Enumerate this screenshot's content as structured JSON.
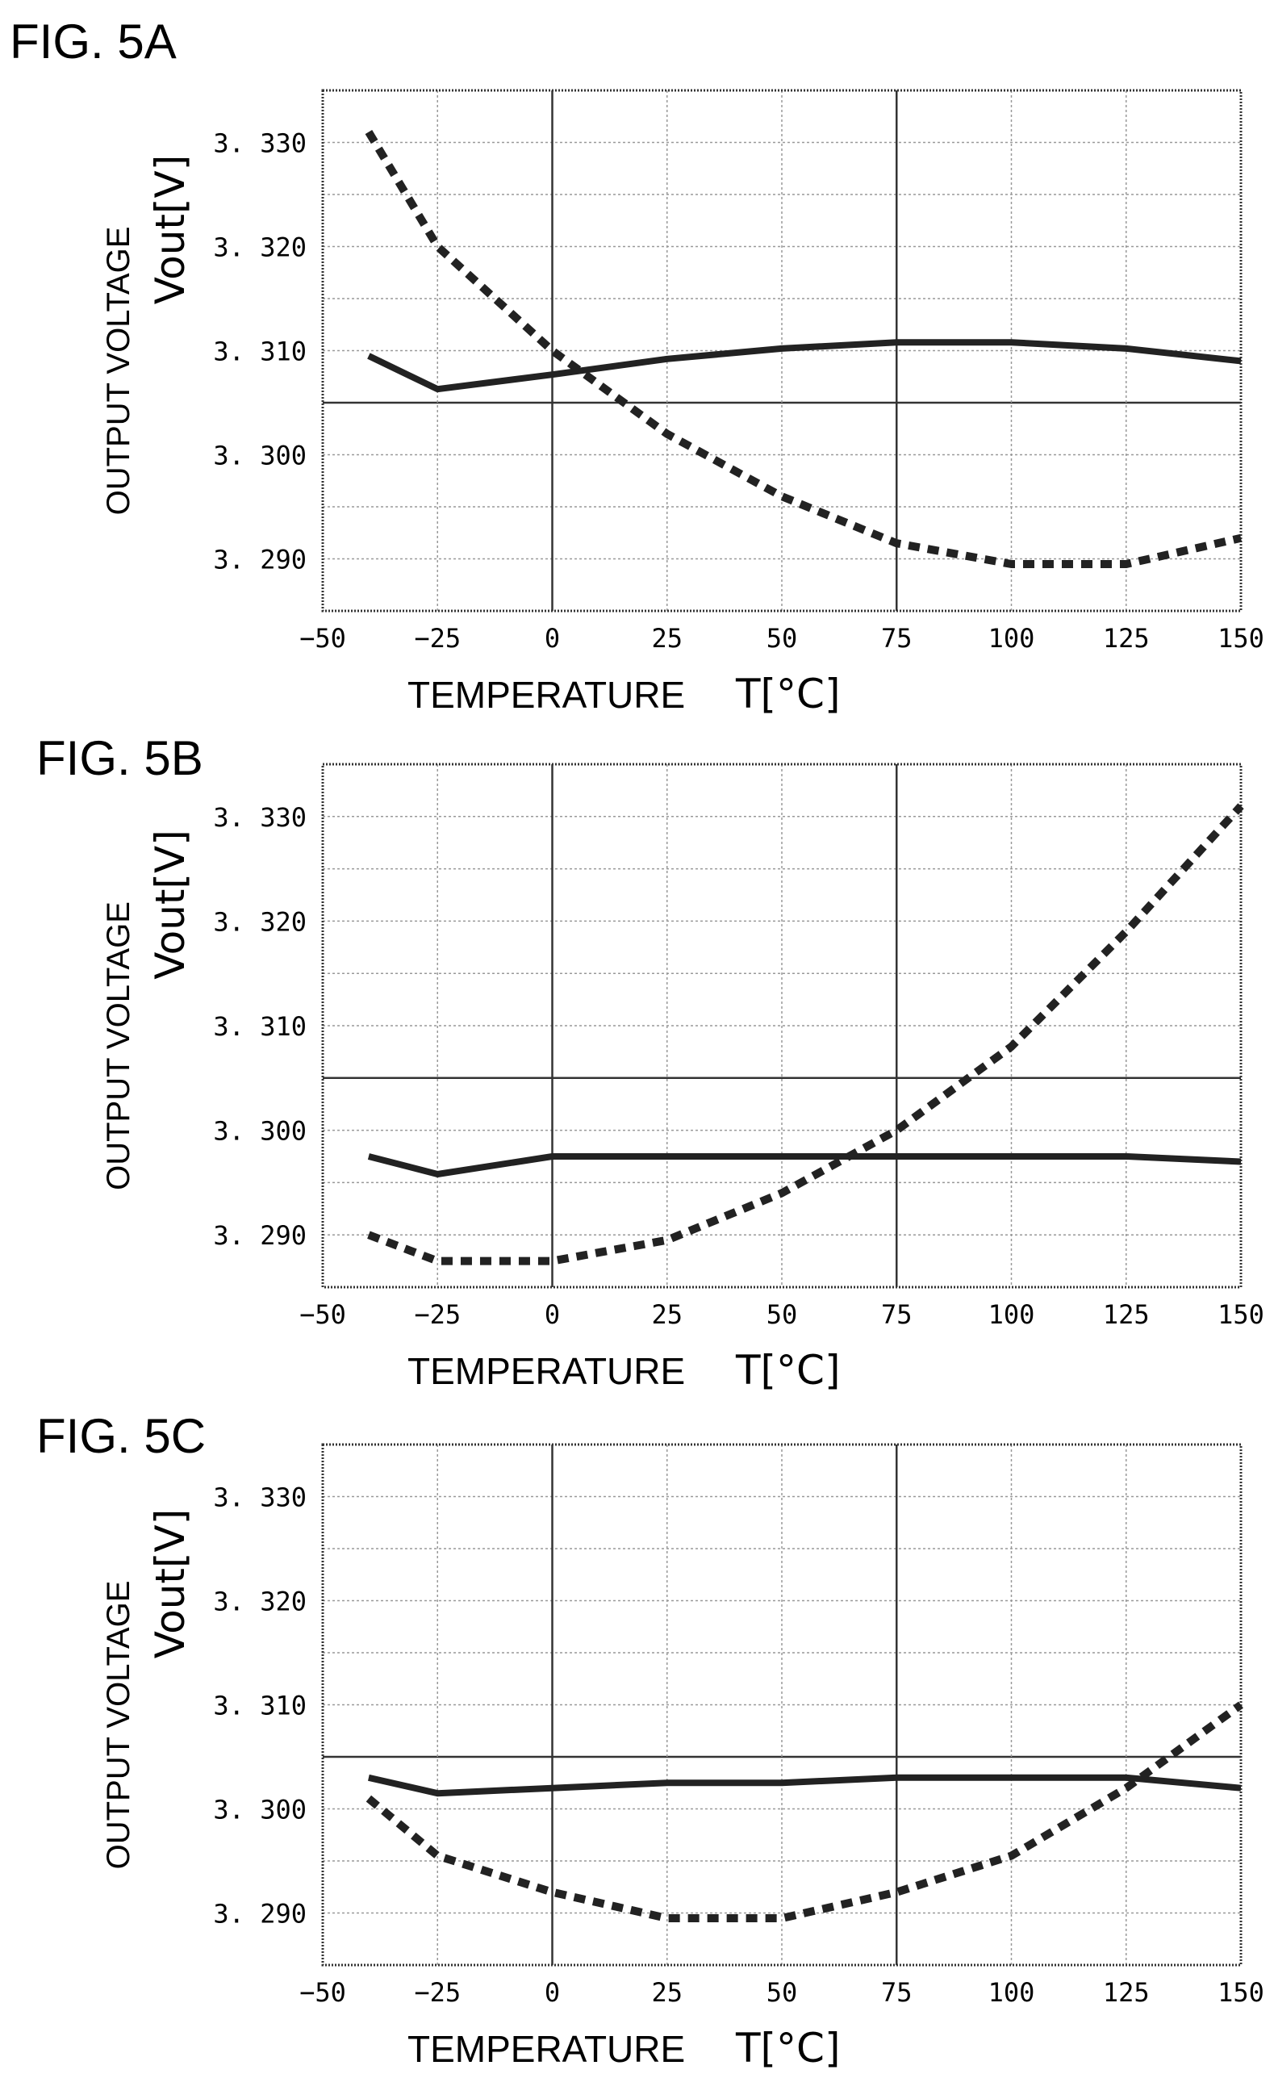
{
  "chart_data": [
    {
      "type": "line",
      "title": "FIG. 5A",
      "xlabel": "TEMPERATURE",
      "xlabel_symbol": "T[°C]",
      "ylabel": "OUTPUT VOLTAGE",
      "ylabel_symbol": "Vout[V]",
      "xlim": [
        -50,
        150
      ],
      "ylim": [
        3.285,
        3.335
      ],
      "x_ticks": [
        "−50",
        "−25",
        "0",
        "25",
        "50",
        "75",
        "100",
        "125",
        "150"
      ],
      "y_ticks": [
        "3. 330",
        "3. 320",
        "3. 310",
        "3. 300",
        "3. 290"
      ],
      "grid": true,
      "series": [
        {
          "style": "solid",
          "x": [
            -40,
            -25,
            0,
            25,
            50,
            75,
            100,
            125,
            150
          ],
          "values": [
            3.3095,
            3.3063,
            3.3077,
            3.3092,
            3.3102,
            3.3108,
            3.3108,
            3.3102,
            3.309
          ]
        },
        {
          "style": "dashed",
          "x": [
            -40,
            -25,
            0,
            25,
            50,
            75,
            100,
            125,
            150
          ],
          "values": [
            3.331,
            3.32,
            3.31,
            3.302,
            3.296,
            3.2915,
            3.2895,
            3.2895,
            3.292
          ]
        }
      ]
    },
    {
      "type": "line",
      "title": "FIG. 5B",
      "xlabel": "TEMPERATURE",
      "xlabel_symbol": "T[°C]",
      "ylabel": "OUTPUT VOLTAGE",
      "ylabel_symbol": "Vout[V]",
      "xlim": [
        -50,
        150
      ],
      "ylim": [
        3.285,
        3.335
      ],
      "x_ticks": [
        "−50",
        "−25",
        "0",
        "25",
        "50",
        "75",
        "100",
        "125",
        "150"
      ],
      "y_ticks": [
        "3. 330",
        "3. 320",
        "3. 310",
        "3. 300",
        "3. 290"
      ],
      "grid": true,
      "series": [
        {
          "style": "solid",
          "x": [
            -40,
            -25,
            0,
            25,
            50,
            75,
            100,
            125,
            150
          ],
          "values": [
            3.2975,
            3.2958,
            3.2975,
            3.2975,
            3.2975,
            3.2975,
            3.2975,
            3.2975,
            3.297
          ]
        },
        {
          "style": "dashed",
          "x": [
            -40,
            -25,
            0,
            25,
            50,
            75,
            100,
            125,
            150
          ],
          "values": [
            3.29,
            3.2875,
            3.2875,
            3.2895,
            3.294,
            3.3,
            3.308,
            3.319,
            3.331
          ]
        }
      ]
    },
    {
      "type": "line",
      "title": "FIG. 5C",
      "xlabel": "TEMPERATURE",
      "xlabel_symbol": "T[°C]",
      "ylabel": "OUTPUT VOLTAGE",
      "ylabel_symbol": "Vout[V]",
      "xlim": [
        -50,
        150
      ],
      "ylim": [
        3.285,
        3.335
      ],
      "x_ticks": [
        "−50",
        "−25",
        "0",
        "25",
        "50",
        "75",
        "100",
        "125",
        "150"
      ],
      "y_ticks": [
        "3. 330",
        "3. 320",
        "3. 310",
        "3. 300",
        "3. 290"
      ],
      "grid": true,
      "series": [
        {
          "style": "solid",
          "x": [
            -40,
            -25,
            0,
            25,
            50,
            75,
            100,
            125,
            150
          ],
          "values": [
            3.303,
            3.3015,
            3.302,
            3.3025,
            3.3025,
            3.303,
            3.303,
            3.303,
            3.302
          ]
        },
        {
          "style": "dashed",
          "x": [
            -40,
            -25,
            0,
            25,
            50,
            75,
            100,
            125,
            150
          ],
          "values": [
            3.301,
            3.2955,
            3.292,
            3.2895,
            3.2895,
            3.292,
            3.2955,
            3.302,
            3.31
          ]
        }
      ]
    }
  ],
  "colors": {
    "line": "#222222",
    "grid": "#999999",
    "frame": "#333333"
  }
}
